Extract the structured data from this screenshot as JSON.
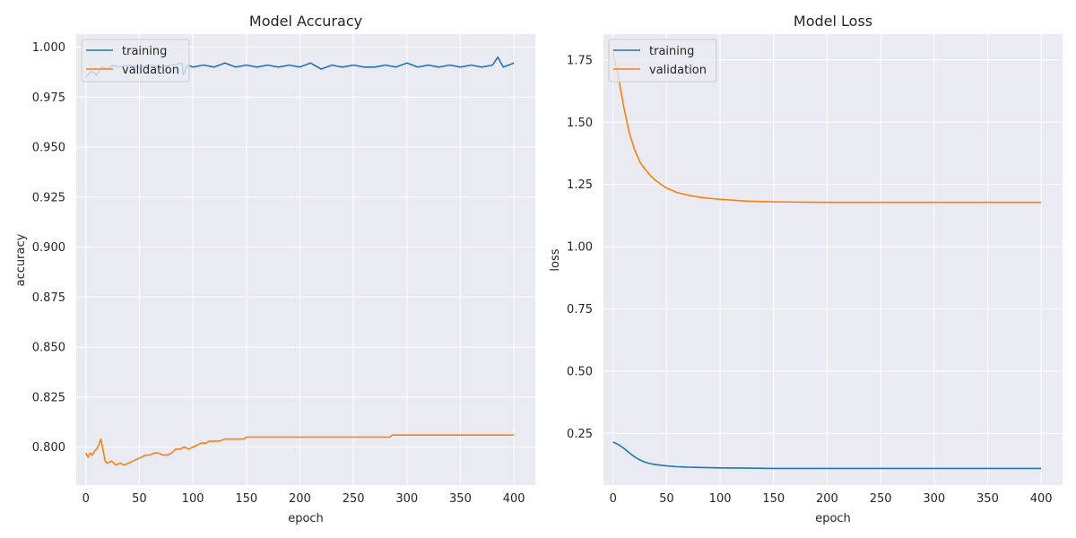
{
  "chart_data": [
    {
      "type": "line",
      "title": "Model Accuracy",
      "xlabel": "epoch",
      "ylabel": "accuracy",
      "xlim": [
        -9,
        420
      ],
      "ylim": [
        0.781,
        1.0065
      ],
      "xticks": [
        0,
        50,
        100,
        150,
        200,
        250,
        300,
        350,
        400
      ],
      "xtick_labels": [
        "0",
        "50",
        "100",
        "150",
        "200",
        "250",
        "300",
        "350",
        "400"
      ],
      "yticks": [
        0.8,
        0.825,
        0.85,
        0.875,
        0.9,
        0.925,
        0.95,
        0.975,
        1.0
      ],
      "ytick_labels": [
        "0.800",
        "0.825",
        "0.850",
        "0.875",
        "0.900",
        "0.925",
        "0.950",
        "0.975",
        "1.000"
      ],
      "grid": true,
      "legend_position": "top-left",
      "series": [
        {
          "name": "training",
          "color": "#1f77b4",
          "x": [
            0,
            5,
            10,
            15,
            20,
            25,
            30,
            40,
            50,
            60,
            70,
            80,
            90,
            91,
            95,
            100,
            110,
            120,
            130,
            140,
            150,
            160,
            170,
            180,
            190,
            200,
            210,
            220,
            230,
            240,
            250,
            260,
            270,
            280,
            290,
            300,
            310,
            320,
            330,
            340,
            350,
            360,
            370,
            380,
            385,
            390,
            395,
            400
          ],
          "values": [
            0.985,
            0.988,
            0.986,
            0.99,
            0.989,
            0.991,
            0.99,
            0.991,
            0.99,
            0.991,
            0.99,
            0.991,
            0.992,
            0.986,
            0.991,
            0.99,
            0.991,
            0.99,
            0.992,
            0.99,
            0.991,
            0.99,
            0.991,
            0.99,
            0.991,
            0.99,
            0.992,
            0.989,
            0.991,
            0.99,
            0.991,
            0.99,
            0.99,
            0.991,
            0.99,
            0.992,
            0.99,
            0.991,
            0.99,
            0.991,
            0.99,
            0.991,
            0.99,
            0.991,
            0.995,
            0.99,
            0.991,
            0.992
          ]
        },
        {
          "name": "validation",
          "color": "#ff7f0e",
          "x": [
            0,
            2,
            4,
            6,
            8,
            10,
            12,
            14,
            16,
            18,
            20,
            24,
            28,
            32,
            36,
            40,
            44,
            48,
            52,
            56,
            60,
            64,
            68,
            72,
            76,
            80,
            84,
            88,
            92,
            96,
            100,
            104,
            108,
            112,
            116,
            120,
            125,
            130,
            140,
            148,
            150,
            200,
            250,
            284,
            286,
            300,
            350,
            400
          ],
          "values": [
            0.797,
            0.795,
            0.797,
            0.796,
            0.798,
            0.799,
            0.801,
            0.804,
            0.799,
            0.793,
            0.792,
            0.793,
            0.791,
            0.792,
            0.791,
            0.792,
            0.793,
            0.794,
            0.795,
            0.796,
            0.796,
            0.797,
            0.797,
            0.796,
            0.796,
            0.797,
            0.799,
            0.799,
            0.8,
            0.799,
            0.8,
            0.801,
            0.802,
            0.802,
            0.803,
            0.803,
            0.803,
            0.804,
            0.804,
            0.804,
            0.805,
            0.805,
            0.805,
            0.805,
            0.806,
            0.806,
            0.806,
            0.806
          ]
        }
      ]
    },
    {
      "type": "line",
      "title": "Model Loss",
      "xlabel": "epoch",
      "ylabel": "loss",
      "xlim": [
        -9,
        420
      ],
      "ylim": [
        0.042,
        1.854
      ],
      "xticks": [
        0,
        50,
        100,
        150,
        200,
        250,
        300,
        350,
        400
      ],
      "xtick_labels": [
        "0",
        "50",
        "100",
        "150",
        "200",
        "250",
        "300",
        "350",
        "400"
      ],
      "yticks": [
        0.25,
        0.5,
        0.75,
        1.0,
        1.25,
        1.5,
        1.75
      ],
      "ytick_labels": [
        "0.25",
        "0.50",
        "0.75",
        "1.00",
        "1.25",
        "1.50",
        "1.75"
      ],
      "grid": true,
      "legend_position": "top-left",
      "series": [
        {
          "name": "training",
          "color": "#1f77b4",
          "x": [
            0,
            5,
            10,
            15,
            20,
            25,
            30,
            35,
            40,
            50,
            60,
            70,
            80,
            100,
            125,
            150,
            200,
            250,
            300,
            350,
            400
          ],
          "values": [
            0.215,
            0.205,
            0.19,
            0.172,
            0.156,
            0.143,
            0.134,
            0.128,
            0.124,
            0.119,
            0.116,
            0.114,
            0.113,
            0.111,
            0.11,
            0.109,
            0.109,
            0.109,
            0.109,
            0.109,
            0.109
          ]
        },
        {
          "name": "validation",
          "color": "#ff7f0e",
          "x": [
            0,
            5,
            10,
            15,
            20,
            25,
            30,
            35,
            40,
            50,
            60,
            70,
            80,
            90,
            100,
            125,
            150,
            175,
            200,
            250,
            300,
            350,
            400
          ],
          "values": [
            1.78,
            1.68,
            1.56,
            1.46,
            1.39,
            1.34,
            1.31,
            1.285,
            1.265,
            1.235,
            1.217,
            1.207,
            1.199,
            1.194,
            1.19,
            1.183,
            1.18,
            1.179,
            1.178,
            1.178,
            1.178,
            1.178,
            1.178
          ]
        }
      ]
    }
  ]
}
